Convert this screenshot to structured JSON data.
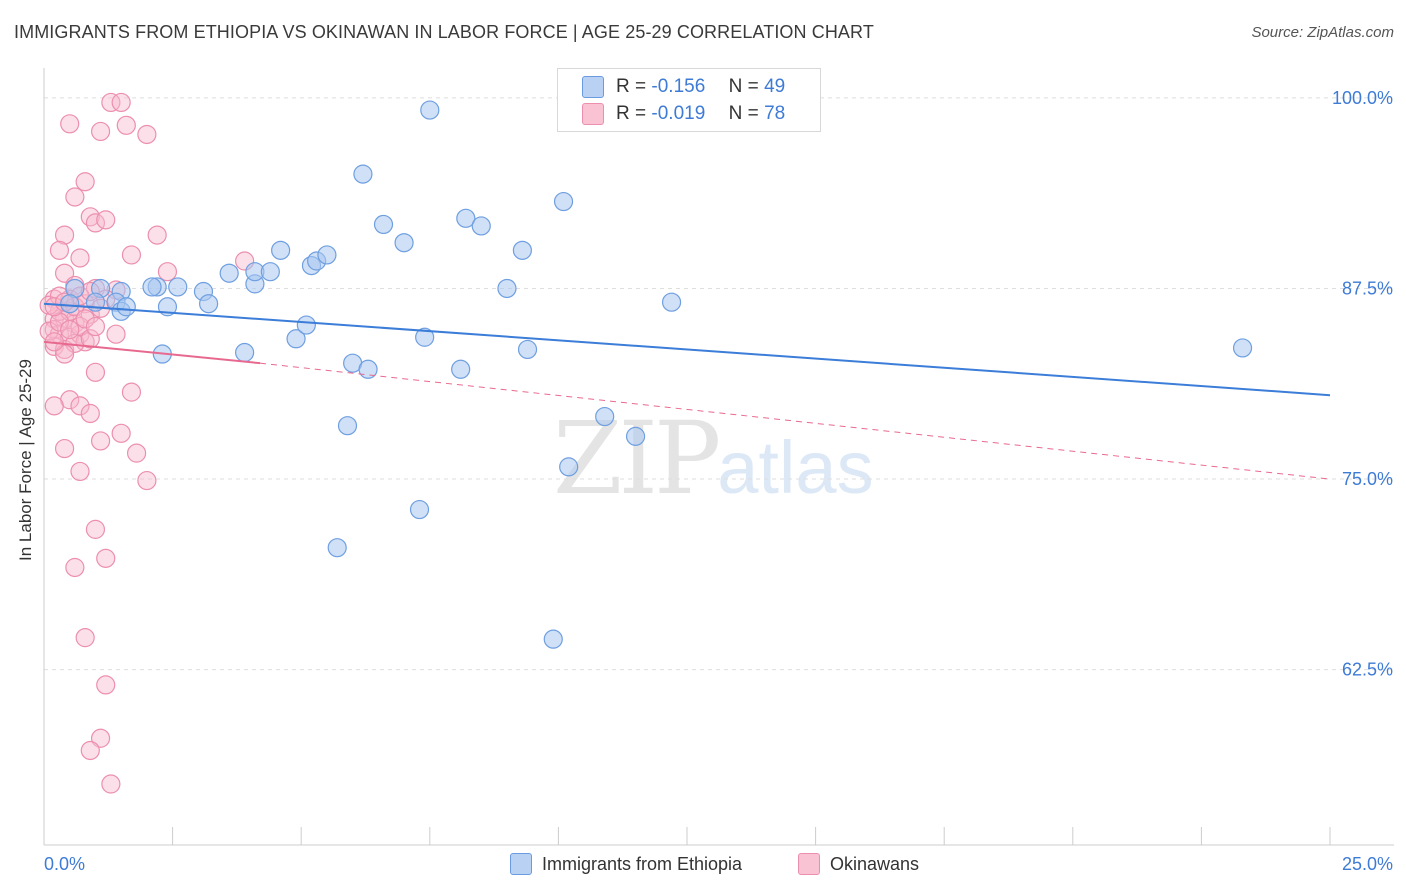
{
  "header": {
    "title": "IMMIGRANTS FROM ETHIOPIA VS OKINAWAN IN LABOR FORCE | AGE 25-29 CORRELATION CHART",
    "source": "Source: ZipAtlas.com"
  },
  "legend": {
    "r_label": "R =",
    "n_label": "N =",
    "series": [
      {
        "r": "-0.156",
        "n": "49"
      },
      {
        "r": "-0.019",
        "n": "78"
      }
    ]
  },
  "watermark": {
    "zip": "ZIP",
    "atlas": "atlas"
  },
  "colors": {
    "blue": "#3b7dd8",
    "blue_fill": "#b9d2f3",
    "pink": "#e8698f",
    "pink_fill": "#f9c3d4",
    "grid": "#dddddd",
    "tick_label": "#3e7bd6"
  },
  "chart_data": {
    "type": "scatter",
    "title": "IMMIGRANTS FROM ETHIOPIA VS OKINAWAN IN LABOR FORCE | AGE 25-29 CORRELATION CHART",
    "xlabel": "",
    "ylabel": "In Labor Force | Age 25-29",
    "xlim": [
      0,
      25
    ],
    "ylim": [
      51,
      101.5
    ],
    "x_tick_labels": [
      "0.0%",
      "25.0%"
    ],
    "y_ticks": [
      62.5,
      75.0,
      87.5,
      100.0
    ],
    "y_tick_labels": [
      "62.5%",
      "75.0%",
      "87.5%",
      "100.0%"
    ],
    "grid": true,
    "legend_position": "top-center",
    "series": [
      {
        "name": "Immigrants from Ethiopia",
        "color": "#3b7dd8",
        "trend": {
          "x": [
            0.0,
            25.0
          ],
          "y": [
            86.5,
            80.5
          ],
          "dashed": false
        },
        "points": [
          [
            1.1,
            87.5
          ],
          [
            1.5,
            87.3
          ],
          [
            1.0,
            86.6
          ],
          [
            1.4,
            86.6
          ],
          [
            1.5,
            86.0
          ],
          [
            1.6,
            86.3
          ],
          [
            2.2,
            87.6
          ],
          [
            2.6,
            87.6
          ],
          [
            2.4,
            86.3
          ],
          [
            3.1,
            87.3
          ],
          [
            3.2,
            86.5
          ],
          [
            3.6,
            88.5
          ],
          [
            2.3,
            83.2
          ],
          [
            3.9,
            83.3
          ],
          [
            4.1,
            87.8
          ],
          [
            4.1,
            88.6
          ],
          [
            4.4,
            88.6
          ],
          [
            4.6,
            90.0
          ],
          [
            4.9,
            84.2
          ],
          [
            5.1,
            85.1
          ],
          [
            5.2,
            89.0
          ],
          [
            5.3,
            89.3
          ],
          [
            5.5,
            89.7
          ],
          [
            6.2,
            95.0
          ],
          [
            6.6,
            91.7
          ],
          [
            7.0,
            90.5
          ],
          [
            6.0,
            82.6
          ],
          [
            6.3,
            82.2
          ],
          [
            5.9,
            78.5
          ],
          [
            7.4,
            84.3
          ],
          [
            8.2,
            92.1
          ],
          [
            8.5,
            91.6
          ],
          [
            9.0,
            87.5
          ],
          [
            9.3,
            90.0
          ],
          [
            9.4,
            83.5
          ],
          [
            7.5,
            99.2
          ],
          [
            10.1,
            93.2
          ],
          [
            10.2,
            75.8
          ],
          [
            10.9,
            79.1
          ],
          [
            11.5,
            77.8
          ],
          [
            8.1,
            82.2
          ],
          [
            5.7,
            70.5
          ],
          [
            7.3,
            73.0
          ],
          [
            12.2,
            86.6
          ],
          [
            9.9,
            64.5
          ],
          [
            23.3,
            83.6
          ],
          [
            0.6,
            87.5
          ],
          [
            2.1,
            87.6
          ],
          [
            0.5,
            86.5
          ]
        ]
      },
      {
        "name": "Okinawans",
        "color": "#e8698f",
        "trend": {
          "x": [
            0.0,
            4.2
          ],
          "y": [
            84.0,
            82.6
          ],
          "dashed_x": [
            4.2,
            25.0
          ],
          "dashed_y": [
            82.6,
            75.0
          ]
        },
        "points": [
          [
            1.3,
            99.7
          ],
          [
            1.5,
            99.7
          ],
          [
            1.1,
            97.8
          ],
          [
            1.6,
            98.2
          ],
          [
            2.0,
            97.6
          ],
          [
            0.5,
            98.3
          ],
          [
            0.8,
            94.5
          ],
          [
            0.6,
            93.5
          ],
          [
            0.9,
            92.2
          ],
          [
            1.0,
            91.8
          ],
          [
            0.4,
            91.0
          ],
          [
            1.2,
            92.0
          ],
          [
            2.2,
            91.0
          ],
          [
            0.3,
            90.0
          ],
          [
            0.7,
            89.5
          ],
          [
            1.7,
            89.7
          ],
          [
            0.4,
            88.5
          ],
          [
            0.6,
            87.7
          ],
          [
            1.0,
            87.5
          ],
          [
            1.4,
            87.4
          ],
          [
            0.2,
            86.8
          ],
          [
            0.5,
            86.8
          ],
          [
            0.8,
            86.5
          ],
          [
            1.2,
            86.8
          ],
          [
            0.2,
            85.5
          ],
          [
            0.4,
            85.5
          ],
          [
            0.6,
            85.2
          ],
          [
            0.9,
            85.8
          ],
          [
            0.2,
            84.8
          ],
          [
            0.3,
            84.5
          ],
          [
            0.5,
            84.3
          ],
          [
            0.7,
            84.5
          ],
          [
            0.8,
            84.0
          ],
          [
            0.2,
            83.7
          ],
          [
            0.4,
            83.5
          ],
          [
            0.6,
            83.9
          ],
          [
            1.4,
            84.5
          ],
          [
            2.4,
            88.6
          ],
          [
            3.9,
            89.3
          ],
          [
            1.0,
            82.0
          ],
          [
            1.7,
            80.7
          ],
          [
            0.5,
            80.2
          ],
          [
            0.7,
            79.8
          ],
          [
            0.9,
            79.3
          ],
          [
            0.2,
            79.8
          ],
          [
            1.5,
            78.0
          ],
          [
            0.4,
            77.0
          ],
          [
            1.1,
            77.5
          ],
          [
            1.8,
            76.7
          ],
          [
            0.7,
            75.5
          ],
          [
            2.0,
            74.9
          ],
          [
            1.0,
            71.7
          ],
          [
            1.2,
            69.8
          ],
          [
            0.6,
            69.2
          ],
          [
            0.8,
            64.6
          ],
          [
            1.2,
            61.5
          ],
          [
            1.1,
            58.0
          ],
          [
            0.9,
            57.2
          ],
          [
            1.3,
            55.0
          ],
          [
            0.3,
            86.0
          ],
          [
            0.1,
            84.7
          ],
          [
            0.1,
            86.4
          ],
          [
            0.3,
            87.0
          ],
          [
            0.5,
            86.0
          ],
          [
            0.7,
            85.0
          ],
          [
            0.9,
            84.2
          ],
          [
            1.1,
            86.2
          ],
          [
            0.4,
            83.2
          ],
          [
            0.6,
            86.3
          ],
          [
            0.8,
            85.5
          ],
          [
            0.2,
            84.0
          ],
          [
            0.3,
            85.3
          ],
          [
            0.5,
            84.8
          ],
          [
            0.7,
            87.0
          ],
          [
            0.9,
            87.3
          ],
          [
            1.0,
            85.0
          ],
          [
            0.2,
            86.3
          ],
          [
            0.4,
            86.6
          ]
        ]
      }
    ]
  },
  "bottom_legend": [
    "Immigrants from Ethiopia",
    "Okinawans"
  ]
}
